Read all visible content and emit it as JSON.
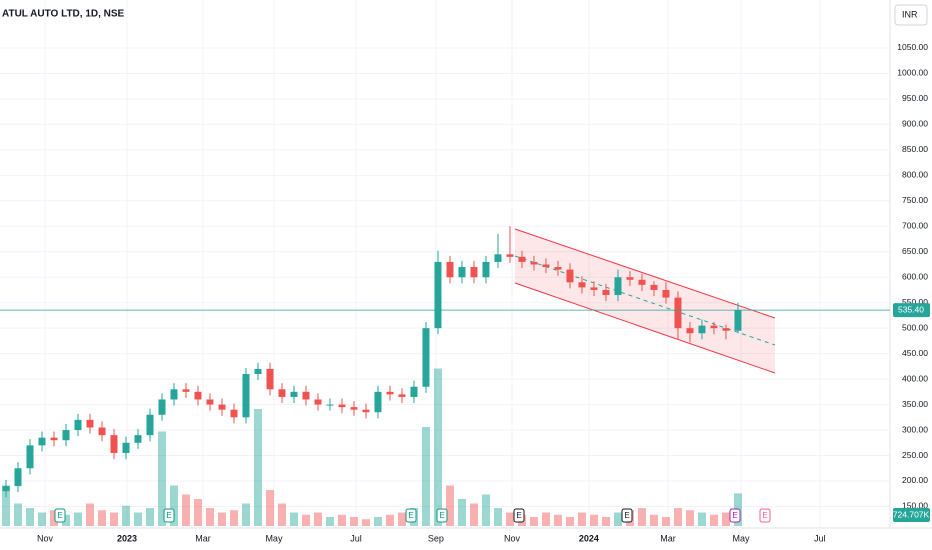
{
  "chart_data": {
    "type": "candlestick",
    "title": "ATUL AUTO LTD, 1D, NSE",
    "currency": "INR",
    "open": [
      180,
      190,
      225,
      270,
      285,
      280,
      300,
      320,
      305,
      290,
      255,
      275,
      290,
      330,
      360,
      380,
      375,
      360,
      350,
      340,
      325,
      410,
      420,
      380,
      365,
      375,
      360,
      350,
      350,
      345,
      340,
      335,
      375,
      370,
      365,
      385,
      500,
      630,
      600,
      620,
      600,
      630,
      645,
      640,
      630,
      625,
      620,
      615,
      590,
      580,
      575,
      565,
      600,
      595,
      585,
      575,
      560,
      500,
      490,
      505,
      500,
      495
    ],
    "high": [
      202,
      237,
      282,
      297,
      297,
      312,
      332,
      332,
      317,
      302,
      287,
      302,
      342,
      372,
      392,
      392,
      387,
      372,
      362,
      352,
      422,
      432,
      432,
      392,
      387,
      387,
      372,
      362,
      362,
      357,
      352,
      387,
      387,
      382,
      397,
      512,
      652,
      642,
      632,
      632,
      642,
      685,
      700,
      652,
      642,
      637,
      632,
      627,
      602,
      592,
      587,
      615,
      612,
      607,
      592,
      590,
      572,
      512,
      517,
      512,
      507,
      550
    ],
    "low": [
      168,
      178,
      213,
      258,
      268,
      268,
      288,
      293,
      278,
      243,
      243,
      263,
      278,
      318,
      348,
      363,
      348,
      338,
      328,
      313,
      313,
      398,
      368,
      353,
      353,
      348,
      338,
      338,
      333,
      328,
      323,
      323,
      358,
      353,
      353,
      373,
      488,
      588,
      588,
      588,
      588,
      618,
      628,
      618,
      613,
      608,
      603,
      578,
      568,
      563,
      553,
      553,
      583,
      573,
      563,
      548,
      478,
      472,
      478,
      488,
      478,
      490
    ],
    "close": [
      190,
      225,
      270,
      285,
      280,
      300,
      320,
      305,
      290,
      255,
      275,
      290,
      330,
      360,
      380,
      375,
      360,
      350,
      340,
      325,
      410,
      420,
      380,
      365,
      375,
      360,
      350,
      350,
      345,
      340,
      335,
      375,
      370,
      365,
      385,
      500,
      630,
      600,
      620,
      600,
      630,
      645,
      640,
      630,
      625,
      620,
      615,
      590,
      580,
      575,
      565,
      600,
      595,
      585,
      575,
      560,
      500,
      490,
      505,
      500,
      495,
      535.4
    ],
    "volume": [
      900,
      500,
      400,
      300,
      350,
      250,
      300,
      500,
      350,
      300,
      450,
      300,
      400,
      2100,
      900,
      700,
      600,
      400,
      300,
      350,
      500,
      2600,
      800,
      500,
      300,
      250,
      300,
      200,
      250,
      200,
      150,
      200,
      250,
      300,
      400,
      2200,
      3500,
      900,
      600,
      500,
      700,
      400,
      300,
      250,
      200,
      300,
      250,
      200,
      300,
      250,
      200,
      300,
      350,
      400,
      250,
      200,
      400,
      350,
      300,
      250,
      300,
      725
    ],
    "last_price": 535.4,
    "last_price_label": "535.40",
    "last_volume_label": "724.707K",
    "up_color": "#26a69a",
    "down_color": "#ef5350",
    "events": [
      "E",
      "E",
      "E",
      "E",
      "E",
      "E",
      "E",
      "E"
    ],
    "xlim": [
      -0.5,
      73.67
    ],
    "ylim": [
      107.7,
      1144.2
    ],
    "xticks": [
      {
        "value": 3.25,
        "label": "Nov"
      },
      {
        "value": 10.08,
        "label": "2023"
      },
      {
        "value": 16.42,
        "label": "Mar"
      },
      {
        "value": 22.33,
        "label": "May"
      },
      {
        "value": 29.17,
        "label": "Jul"
      },
      {
        "value": 35.83,
        "label": "Sep"
      },
      {
        "value": 42.17,
        "label": "Nov"
      },
      {
        "value": 48.58,
        "label": "2024"
      },
      {
        "value": 55.17,
        "label": "Mar"
      },
      {
        "value": 61.25,
        "label": "May"
      },
      {
        "value": 67.83,
        "label": "Jul"
      }
    ],
    "yticks": [
      {
        "value": 150,
        "label": "150.00"
      },
      {
        "value": 200,
        "label": "200.00"
      },
      {
        "value": 250,
        "label": "250.00"
      },
      {
        "value": 300,
        "label": "300.00"
      },
      {
        "value": 350,
        "label": "350.00"
      },
      {
        "value": 400,
        "label": "400.00"
      },
      {
        "value": 450,
        "label": "450.00"
      },
      {
        "value": 500,
        "label": "500.00"
      },
      {
        "value": 550,
        "label": "550.00"
      },
      {
        "value": 600,
        "label": "600.00"
      },
      {
        "value": 650,
        "label": "650.00"
      },
      {
        "value": 700,
        "label": "700.00"
      },
      {
        "value": 750,
        "label": "750.00"
      },
      {
        "value": 800,
        "label": "800.00"
      },
      {
        "value": 850,
        "label": "850.00"
      },
      {
        "value": 900,
        "label": "900.00"
      },
      {
        "value": 950,
        "label": "950.00"
      },
      {
        "value": 1000,
        "label": "1000.00"
      },
      {
        "value": 1050,
        "label": "1050.00"
      }
    ],
    "grid": true
  }
}
